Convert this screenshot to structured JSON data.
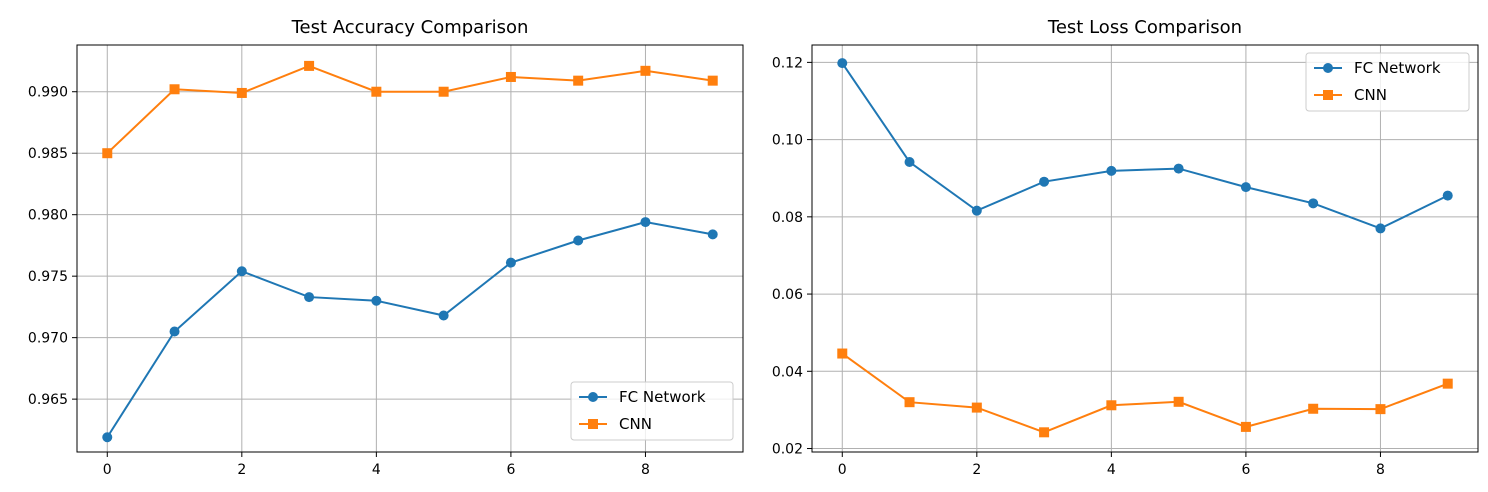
{
  "chart_data": [
    {
      "type": "line",
      "title": "Test Accuracy Comparison",
      "xlabel": "",
      "ylabel": "",
      "x": [
        0,
        1,
        2,
        3,
        4,
        5,
        6,
        7,
        8,
        9
      ],
      "xlim": [
        -0.45,
        9.45
      ],
      "ylim": [
        0.9607,
        0.9938
      ],
      "xticks": [
        0,
        2,
        4,
        6,
        8
      ],
      "xtick_labels": [
        "0",
        "2",
        "4",
        "6",
        "8"
      ],
      "yticks": [
        0.965,
        0.97,
        0.975,
        0.98,
        0.985,
        0.99
      ],
      "ytick_labels": [
        "0.965",
        "0.970",
        "0.975",
        "0.980",
        "0.985",
        "0.990"
      ],
      "grid": true,
      "legend_position": "lower-right",
      "series": [
        {
          "name": "FC Network",
          "color": "#1f77b4",
          "marker": "circle",
          "values": [
            0.9619,
            0.9705,
            0.9754,
            0.9733,
            0.973,
            0.9718,
            0.9761,
            0.9779,
            0.9794,
            0.9784
          ]
        },
        {
          "name": "CNN",
          "color": "#ff7f0e",
          "marker": "square",
          "values": [
            0.985,
            0.9902,
            0.9899,
            0.9921,
            0.99,
            0.99,
            0.9912,
            0.9909,
            0.9917,
            0.9909
          ]
        }
      ]
    },
    {
      "type": "line",
      "title": "Test Loss Comparison",
      "xlabel": "",
      "ylabel": "",
      "x": [
        0,
        1,
        2,
        3,
        4,
        5,
        6,
        7,
        8,
        9
      ],
      "xlim": [
        -0.45,
        9.45
      ],
      "ylim": [
        0.0191,
        0.1245
      ],
      "xticks": [
        0,
        2,
        4,
        6,
        8
      ],
      "xtick_labels": [
        "0",
        "2",
        "4",
        "6",
        "8"
      ],
      "yticks": [
        0.02,
        0.04,
        0.06,
        0.08,
        0.1,
        0.12
      ],
      "ytick_labels": [
        "0.02",
        "0.04",
        "0.06",
        "0.08",
        "0.10",
        "0.12"
      ],
      "grid": true,
      "legend_position": "upper-right",
      "series": [
        {
          "name": "FC Network",
          "color": "#1f77b4",
          "marker": "circle",
          "values": [
            0.1198,
            0.0942,
            0.0816,
            0.0891,
            0.0919,
            0.0925,
            0.0877,
            0.0835,
            0.077,
            0.0855
          ]
        },
        {
          "name": "CNN",
          "color": "#ff7f0e",
          "marker": "square",
          "values": [
            0.0446,
            0.032,
            0.0306,
            0.0242,
            0.0312,
            0.0321,
            0.0256,
            0.0303,
            0.0302,
            0.0368
          ]
        }
      ]
    }
  ]
}
